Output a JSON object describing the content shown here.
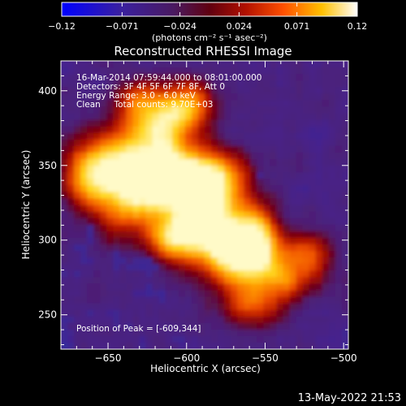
{
  "colorbar": {
    "ticks": [
      "-0.12",
      "-0.071",
      "-0.024",
      "0.024",
      "0.071",
      "0.12"
    ],
    "unit_label": "(photons cm⁻² s⁻¹ asec⁻²)",
    "range": [
      -0.12,
      0.12
    ],
    "colormap": [
      "#0000ff",
      "#3a1a8a",
      "#5a1a6a",
      "#8a0000",
      "#d42000",
      "#ff8000",
      "#ffd000",
      "#ffffff"
    ]
  },
  "plot": {
    "title": "Reconstructed RHESSI Image",
    "info_lines": [
      "16-Mar-2014 07:59:44.000 to 08:01:00.000",
      "Detectors: 3F 4F 5F 6F 7F 8F, Att 0",
      "Energy Range: 3.0 - 6.0 keV",
      "Clean     Total counts: 9.70E+03"
    ],
    "peak_label": "Position of Peak = [-609,344]",
    "xlabel": "Heliocentric X (arcsec)",
    "ylabel": "Heliocentric Y (arcsec)",
    "x_ticks": [
      "-650",
      "-600",
      "-550",
      "-500"
    ],
    "y_ticks": [
      "250",
      "300",
      "350",
      "400"
    ],
    "xlim": [
      -680,
      -497
    ],
    "ylim": [
      227,
      420
    ],
    "peak_position": [
      -609,
      344
    ]
  },
  "footer": {
    "timestamp": "13-May-2022 21:53"
  }
}
